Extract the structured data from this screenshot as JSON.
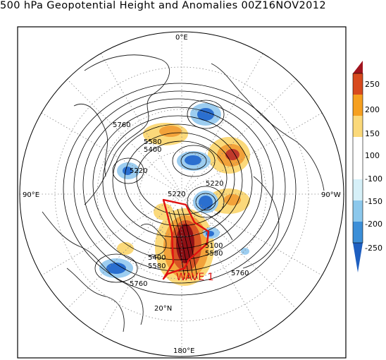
{
  "title": "500 hPa Geopotential Height and Anomalies 00Z16NOV2012",
  "axis_labels": {
    "top": "0°E",
    "left": "90°E",
    "right": "90°W",
    "bottom": "180°E",
    "inner": "20°N"
  },
  "contour_labels": [
    "5760",
    "5580",
    "5400",
    "5220",
    "5220",
    "5220",
    "5400",
    "5580",
    "5760",
    "5760",
    "5100",
    "5580"
  ],
  "annotation": "WAVE 1",
  "colorbar": {
    "ticks": [
      "250",
      "200",
      "150",
      "100",
      "-100",
      "-150",
      "-200",
      "-250"
    ],
    "colors": [
      "#a0141e",
      "#d84a1e",
      "#f6a020",
      "#fbd97a",
      "#ffffff",
      "#d6f0f8",
      "#8cc8ec",
      "#3c8fd8",
      "#1e5fc0"
    ]
  },
  "colors": {
    "positive_strong": "#a0141e",
    "positive_mid": "#e8702a",
    "positive_weak": "#fbd97a",
    "negative_weak": "#9ccdf0",
    "negative_strong": "#2b6fcf",
    "annotation": "#e01010"
  }
}
